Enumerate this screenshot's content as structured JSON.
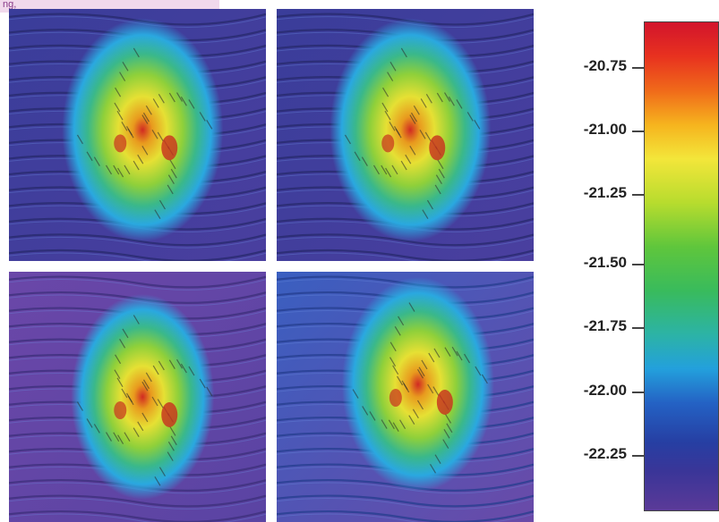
{
  "corner_label": "ng,",
  "colorbar": {
    "ticks": [
      "-20.75",
      "-21.00",
      "-21.25",
      "-21.50",
      "-21.75",
      "-22.00",
      "-22.25"
    ]
  },
  "panels": [
    {
      "id": "p1"
    },
    {
      "id": "p2"
    },
    {
      "id": "p3"
    },
    {
      "id": "p4"
    }
  ]
}
